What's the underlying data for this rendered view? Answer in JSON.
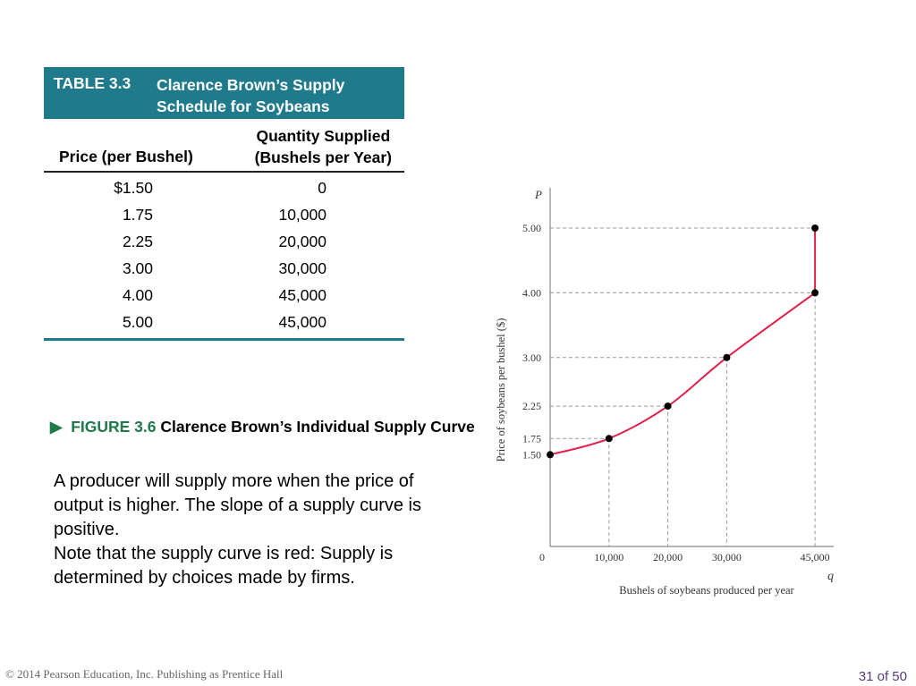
{
  "table": {
    "number": "TABLE 3.3",
    "title_line1": "Clarence Brown’s Supply",
    "title_line2": "Schedule for Soybeans",
    "col_price": "Price (per Bushel)",
    "col_qty_line1": "Quantity Supplied",
    "col_qty_line2": "(Bushels per Year)",
    "rows": [
      {
        "price": "$1.50",
        "qty": "0"
      },
      {
        "price": "1.75",
        "qty": "10,000"
      },
      {
        "price": "2.25",
        "qty": "20,000"
      },
      {
        "price": "3.00",
        "qty": "30,000"
      },
      {
        "price": "4.00",
        "qty": "45,000"
      },
      {
        "price": "5.00",
        "qty": "45,000"
      }
    ]
  },
  "figure": {
    "arrow": "▶",
    "label": "FIGURE 3.6",
    "title": "Clarence Brown’s Individual Supply Curve"
  },
  "description": [
    "A producer will supply more when the price of output is higher. The slope of a supply curve is positive.",
    "Note that the supply curve is red: Supply is determined by choices made by firms."
  ],
  "chart_data": {
    "type": "line",
    "x": [
      0,
      10000,
      20000,
      30000,
      45000,
      45000
    ],
    "y": [
      1.5,
      1.75,
      2.25,
      3.0,
      4.0,
      5.0
    ],
    "xlabel": "Bushels of soybeans produced per year",
    "ylabel": "Price of soybeans per bushel ($)",
    "x_axis_symbol": "q",
    "y_axis_symbol": "P",
    "xticks": [
      "0",
      "10,000",
      "20,000",
      "30,000",
      "45,000"
    ],
    "xtick_values": [
      0,
      10000,
      20000,
      30000,
      45000
    ],
    "yticks": [
      "1.50",
      "1.75",
      "2.25",
      "3.00",
      "4.00",
      "5.00"
    ],
    "ytick_values": [
      1.5,
      1.75,
      2.25,
      3.0,
      4.0,
      5.0
    ],
    "xlim": [
      0,
      48000
    ],
    "ylim": [
      0,
      5.5
    ],
    "line_color": "#e0204a"
  },
  "footer": {
    "copyright": "© 2014 Pearson Education, Inc. Publishing as Prentice Hall",
    "page": "31 of 50"
  }
}
